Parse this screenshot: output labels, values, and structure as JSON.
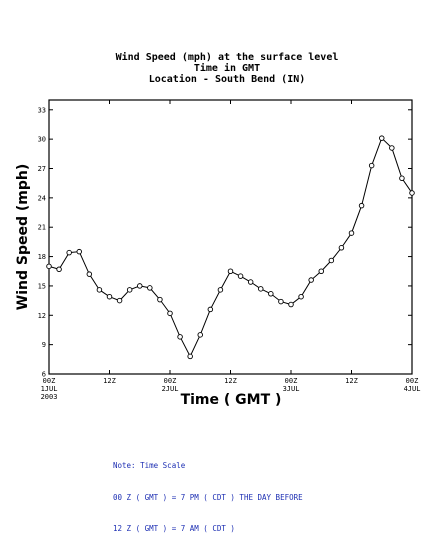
{
  "chart_data": {
    "type": "line",
    "title": [
      "Wind Speed (mph) at the surface level",
      "Time in GMT",
      "Location - South Bend (IN)"
    ],
    "xlabel": "Time ( GMT )",
    "ylabel": "Wind Speed (mph)",
    "ylim": [
      6,
      34
    ],
    "yticks": [
      6,
      9,
      12,
      15,
      18,
      21,
      24,
      27,
      30,
      33
    ],
    "xlim": [
      0,
      72
    ],
    "xticks": [
      {
        "hour": 0,
        "label": "00Z",
        "sub": "1JUL",
        "year": "2003"
      },
      {
        "hour": 12,
        "label": "12Z",
        "sub": "",
        "year": ""
      },
      {
        "hour": 24,
        "label": "00Z",
        "sub": "2JUL",
        "year": ""
      },
      {
        "hour": 36,
        "label": "12Z",
        "sub": "",
        "year": ""
      },
      {
        "hour": 48,
        "label": "00Z",
        "sub": "3JUL",
        "year": ""
      },
      {
        "hour": 60,
        "label": "12Z",
        "sub": "",
        "year": ""
      },
      {
        "hour": 72,
        "label": "00Z",
        "sub": "4JUL",
        "year": ""
      }
    ],
    "grid": false,
    "marker": "open-circle",
    "series": [
      {
        "x": [
          0,
          2,
          4,
          6,
          8,
          10,
          12,
          14,
          16,
          18,
          20,
          22,
          24,
          26,
          28,
          30,
          32,
          34,
          36,
          38,
          40,
          42,
          44,
          46,
          48,
          50,
          52,
          54,
          56,
          58,
          60,
          62,
          64,
          66,
          68,
          70,
          72
        ],
        "values": [
          17.0,
          16.7,
          18.4,
          18.5,
          16.2,
          14.6,
          13.9,
          13.5,
          14.6,
          15.0,
          14.8,
          13.6,
          12.2,
          9.8,
          7.8,
          10.0,
          12.6,
          14.6,
          16.5,
          16.0,
          15.4,
          14.7,
          14.2,
          13.4,
          13.1,
          13.9,
          15.6,
          16.5,
          17.6,
          18.9,
          20.4,
          23.2,
          27.3,
          30.1,
          29.1,
          26.0,
          24.5
        ]
      }
    ]
  },
  "note": {
    "lines": [
      "Note: Time Scale",
      "00 Z ( GMT ) = 7 PM ( CDT ) THE DAY BEFORE",
      "12 Z ( GMT ) = 7 AM ( CDT )"
    ]
  }
}
